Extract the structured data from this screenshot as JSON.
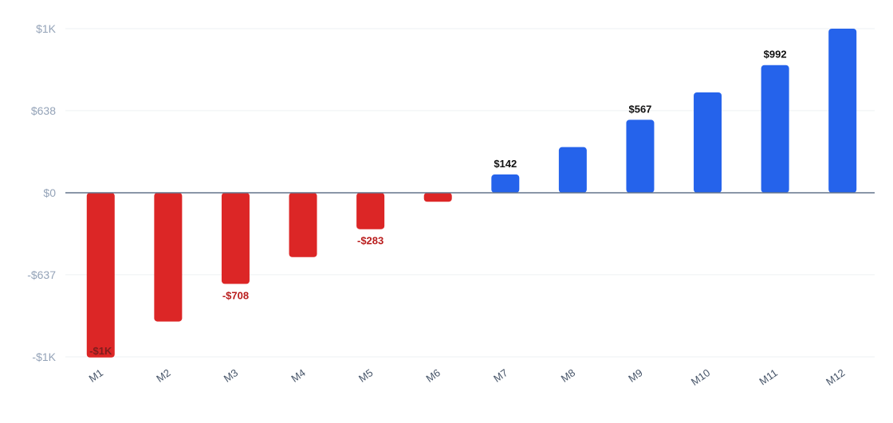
{
  "chart_data": {
    "type": "bar",
    "categories": [
      "M1",
      "M2",
      "M3",
      "M4",
      "M5",
      "M6",
      "M7",
      "M8",
      "M9",
      "M10",
      "M11",
      "M12"
    ],
    "values": [
      -1280,
      -1000,
      -708,
      -500,
      -283,
      -70,
      142,
      355,
      567,
      780,
      992,
      1275
    ],
    "ylim": [
      -1275,
      1275
    ],
    "yticks": [
      {
        "value": 1275,
        "label": "$1K"
      },
      {
        "value": 638,
        "label": "$638"
      },
      {
        "value": 0,
        "label": "$0"
      },
      {
        "value": -637,
        "label": "-$637"
      },
      {
        "value": -1275,
        "label": "-$1K"
      }
    ],
    "data_labels": [
      {
        "index": 0,
        "text": "-$1K"
      },
      {
        "index": 2,
        "text": "-$708"
      },
      {
        "index": 4,
        "text": "-$283"
      },
      {
        "index": 6,
        "text": "$142"
      },
      {
        "index": 8,
        "text": "$567"
      },
      {
        "index": 10,
        "text": "$992"
      }
    ],
    "colors": {
      "positive": "#2563eb",
      "negative": "#dc2626",
      "negative_label": "#b91c1c",
      "positive_label": "#111111",
      "grid": "#eef0f3",
      "zero_line": "#64748b"
    },
    "grid": true
  }
}
